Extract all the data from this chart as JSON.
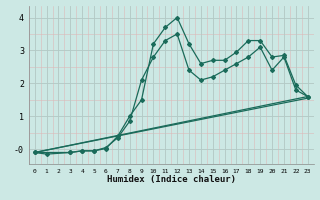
{
  "xlabel": "Humidex (Indice chaleur)",
  "bg_color": "#cce8e4",
  "grid_major_color": "#b0ccc8",
  "grid_minor_color": "#ddb8b8",
  "line_color": "#1a6b5a",
  "xlim": [
    -0.5,
    23.5
  ],
  "ylim": [
    -0.45,
    4.35
  ],
  "xticks": [
    0,
    1,
    2,
    3,
    4,
    5,
    6,
    7,
    8,
    9,
    10,
    11,
    12,
    13,
    14,
    15,
    16,
    17,
    18,
    19,
    20,
    21,
    22,
    23
  ],
  "yticks": [
    0,
    1,
    2,
    3,
    4
  ],
  "ytick_labels": [
    "-0",
    "1",
    "2",
    "3",
    "4"
  ],
  "line1_x": [
    0,
    1,
    3,
    4,
    5,
    6,
    7,
    8,
    9,
    10,
    11,
    12,
    13,
    14,
    15,
    16,
    17,
    18,
    19,
    20,
    21,
    22,
    23
  ],
  "line1_y": [
    -0.1,
    -0.15,
    -0.1,
    -0.05,
    -0.05,
    0.02,
    0.4,
    1.0,
    1.5,
    3.2,
    3.7,
    4.0,
    3.2,
    2.6,
    2.7,
    2.7,
    2.95,
    3.3,
    3.3,
    2.8,
    2.85,
    1.95,
    1.6
  ],
  "line2_x": [
    0,
    3,
    4,
    5,
    6,
    7,
    8,
    9,
    10,
    11,
    12,
    13,
    14,
    15,
    16,
    17,
    18,
    19,
    20,
    21,
    22,
    23
  ],
  "line2_y": [
    -0.1,
    -0.1,
    -0.05,
    -0.05,
    0.05,
    0.35,
    0.85,
    2.1,
    2.8,
    3.3,
    3.5,
    2.4,
    2.1,
    2.2,
    2.4,
    2.6,
    2.8,
    3.1,
    2.4,
    2.8,
    1.8,
    1.6
  ],
  "line3_x": [
    0,
    23
  ],
  "line3_y": [
    -0.1,
    1.6
  ],
  "line4_x": [
    0,
    23
  ],
  "line4_y": [
    -0.1,
    1.55
  ]
}
